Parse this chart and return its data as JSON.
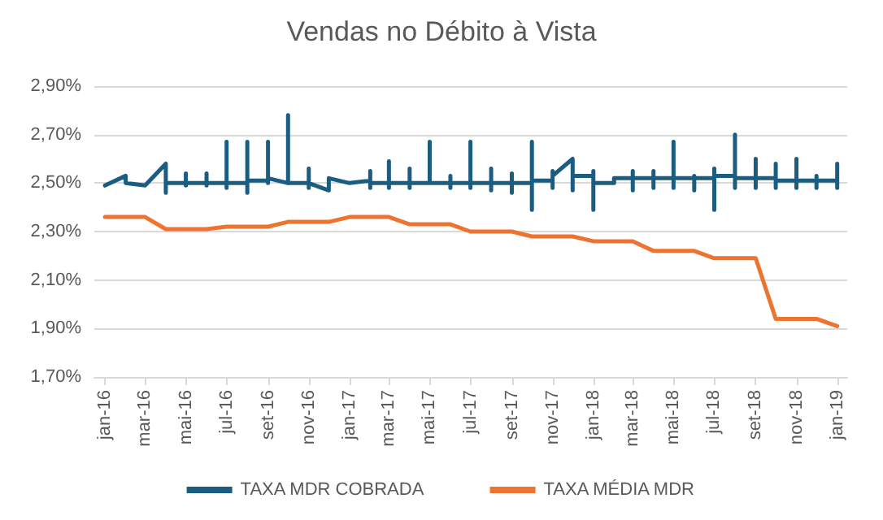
{
  "chart_data": {
    "type": "line",
    "title": "Vendas no Débito à Vista",
    "xlim": [
      "2015-12-16",
      "2019-01-16"
    ],
    "xticks": [
      {
        "value": "2016-01",
        "label": "jan-16"
      },
      {
        "value": "2016-03",
        "label": "mar-16"
      },
      {
        "value": "2016-05",
        "label": "mai-16"
      },
      {
        "value": "2016-07",
        "label": "jul-16"
      },
      {
        "value": "2016-09",
        "label": "set-16"
      },
      {
        "value": "2016-11",
        "label": "nov-16"
      },
      {
        "value": "2017-01",
        "label": "jan-17"
      },
      {
        "value": "2017-03",
        "label": "mar-17"
      },
      {
        "value": "2017-05",
        "label": "mai-17"
      },
      {
        "value": "2017-07",
        "label": "jul-17"
      },
      {
        "value": "2017-09",
        "label": "set-17"
      },
      {
        "value": "2017-11",
        "label": "nov-17"
      },
      {
        "value": "2018-01",
        "label": "jan-18"
      },
      {
        "value": "2018-03",
        "label": "mar-18"
      },
      {
        "value": "2018-05",
        "label": "mai-18"
      },
      {
        "value": "2018-07",
        "label": "jul-18"
      },
      {
        "value": "2018-09",
        "label": "set-18"
      },
      {
        "value": "2018-11",
        "label": "nov-18"
      },
      {
        "value": "2019-01",
        "label": "jan-19"
      }
    ],
    "ylim": [
      1.7,
      2.9
    ],
    "yticks": [
      {
        "value": 1.7,
        "label": "1,70%"
      },
      {
        "value": 1.9,
        "label": "1,90%"
      },
      {
        "value": 2.1,
        "label": "2,10%"
      },
      {
        "value": 2.3,
        "label": "2,30%"
      },
      {
        "value": 2.5,
        "label": "2,50%"
      },
      {
        "value": 2.7,
        "label": "2,70%"
      },
      {
        "value": 2.9,
        "label": "2,90%"
      }
    ],
    "grid": "y",
    "legend": "bottom",
    "marker": "none",
    "line_style": "solid",
    "series": [
      {
        "name": "TAXA MDR COBRADA",
        "color": "#1b5d80",
        "x": [
          "2016-01",
          "2016-02",
          "2016-02",
          "2016-03",
          "2016-04",
          "2016-04",
          "2016-04",
          "2016-05",
          "2016-05",
          "2016-05",
          "2016-05",
          "2016-06",
          "2016-06",
          "2016-06",
          "2016-06",
          "2016-07",
          "2016-07",
          "2016-07",
          "2016-07",
          "2016-08",
          "2016-08",
          "2016-08",
          "2016-08",
          "2016-09",
          "2016-09",
          "2016-09",
          "2016-09",
          "2016-10",
          "2016-10",
          "2016-10",
          "2016-11",
          "2016-11",
          "2016-11",
          "2016-11",
          "2016-12",
          "2016-12",
          "2017-01",
          "2017-02",
          "2017-02",
          "2017-02",
          "2017-02",
          "2017-03",
          "2017-03",
          "2017-03",
          "2017-03",
          "2017-04",
          "2017-04",
          "2017-04",
          "2017-04",
          "2017-05",
          "2017-05",
          "2017-05",
          "2017-06",
          "2017-06",
          "2017-06",
          "2017-06",
          "2017-07",
          "2017-07",
          "2017-07",
          "2017-07",
          "2017-08",
          "2017-08",
          "2017-08",
          "2017-08",
          "2017-09",
          "2017-09",
          "2017-09",
          "2017-09",
          "2017-10",
          "2017-10",
          "2017-10",
          "2017-10",
          "2017-11",
          "2017-11",
          "2017-11",
          "2017-11",
          "2017-12",
          "2017-12",
          "2017-12",
          "2018-01",
          "2018-01",
          "2018-01",
          "2018-01",
          "2018-02",
          "2018-02",
          "2018-03",
          "2018-03",
          "2018-03",
          "2018-03",
          "2018-04",
          "2018-04",
          "2018-04",
          "2018-04",
          "2018-05",
          "2018-05",
          "2018-05",
          "2018-05",
          "2018-06",
          "2018-06",
          "2018-06",
          "2018-06",
          "2018-07",
          "2018-07",
          "2018-07",
          "2018-07",
          "2018-08",
          "2018-08",
          "2018-08",
          "2018-08",
          "2018-09",
          "2018-09",
          "2018-09",
          "2018-09",
          "2018-10",
          "2018-10",
          "2018-10",
          "2018-10",
          "2018-11",
          "2018-11",
          "2018-11",
          "2018-11",
          "2018-12",
          "2018-12",
          "2018-12",
          "2018-12",
          "2019-01",
          "2019-01",
          "2019-01"
        ],
        "values": [
          2.49,
          2.53,
          2.5,
          2.49,
          2.58,
          2.46,
          2.5,
          2.5,
          2.54,
          2.49,
          2.5,
          2.5,
          2.54,
          2.49,
          2.5,
          2.5,
          2.67,
          2.48,
          2.5,
          2.5,
          2.67,
          2.46,
          2.51,
          2.51,
          2.67,
          2.5,
          2.52,
          2.5,
          2.78,
          2.5,
          2.5,
          2.56,
          2.48,
          2.5,
          2.47,
          2.52,
          2.5,
          2.51,
          2.55,
          2.48,
          2.5,
          2.5,
          2.59,
          2.48,
          2.5,
          2.5,
          2.56,
          2.48,
          2.5,
          2.5,
          2.67,
          2.5,
          2.5,
          2.53,
          2.48,
          2.5,
          2.5,
          2.67,
          2.48,
          2.5,
          2.5,
          2.56,
          2.47,
          2.5,
          2.5,
          2.54,
          2.46,
          2.5,
          2.5,
          2.67,
          2.39,
          2.51,
          2.51,
          2.55,
          2.48,
          2.53,
          2.6,
          2.47,
          2.53,
          2.53,
          2.55,
          2.39,
          2.5,
          2.5,
          2.52,
          2.52,
          2.55,
          2.47,
          2.52,
          2.52,
          2.55,
          2.48,
          2.52,
          2.52,
          2.67,
          2.48,
          2.52,
          2.52,
          2.53,
          2.47,
          2.52,
          2.52,
          2.56,
          2.39,
          2.53,
          2.53,
          2.7,
          2.48,
          2.52,
          2.52,
          2.6,
          2.48,
          2.52,
          2.52,
          2.58,
          2.48,
          2.51,
          2.51,
          2.6,
          2.48,
          2.51,
          2.51,
          2.53,
          2.48,
          2.51,
          2.51,
          2.58,
          2.48
        ]
      },
      {
        "name": "TAXA MÉDIA MDR",
        "color": "#ed7331",
        "x": [
          "2016-01",
          "2016-02",
          "2016-03",
          "2016-04",
          "2016-05",
          "2016-06",
          "2016-07",
          "2016-08",
          "2016-09",
          "2016-10",
          "2016-11",
          "2016-12",
          "2017-01",
          "2017-02",
          "2017-03",
          "2017-04",
          "2017-05",
          "2017-06",
          "2017-07",
          "2017-08",
          "2017-09",
          "2017-10",
          "2017-11",
          "2017-12",
          "2018-01",
          "2018-02",
          "2018-03",
          "2018-04",
          "2018-05",
          "2018-06",
          "2018-07",
          "2018-08",
          "2018-09",
          "2018-10",
          "2018-11",
          "2018-12",
          "2019-01"
        ],
        "values": [
          2.36,
          2.36,
          2.36,
          2.31,
          2.31,
          2.31,
          2.32,
          2.32,
          2.32,
          2.34,
          2.34,
          2.34,
          2.36,
          2.36,
          2.36,
          2.33,
          2.33,
          2.33,
          2.3,
          2.3,
          2.3,
          2.28,
          2.28,
          2.28,
          2.26,
          2.26,
          2.26,
          2.22,
          2.22,
          2.22,
          2.19,
          2.19,
          2.19,
          1.94,
          1.94,
          1.94,
          1.91
        ]
      }
    ]
  }
}
